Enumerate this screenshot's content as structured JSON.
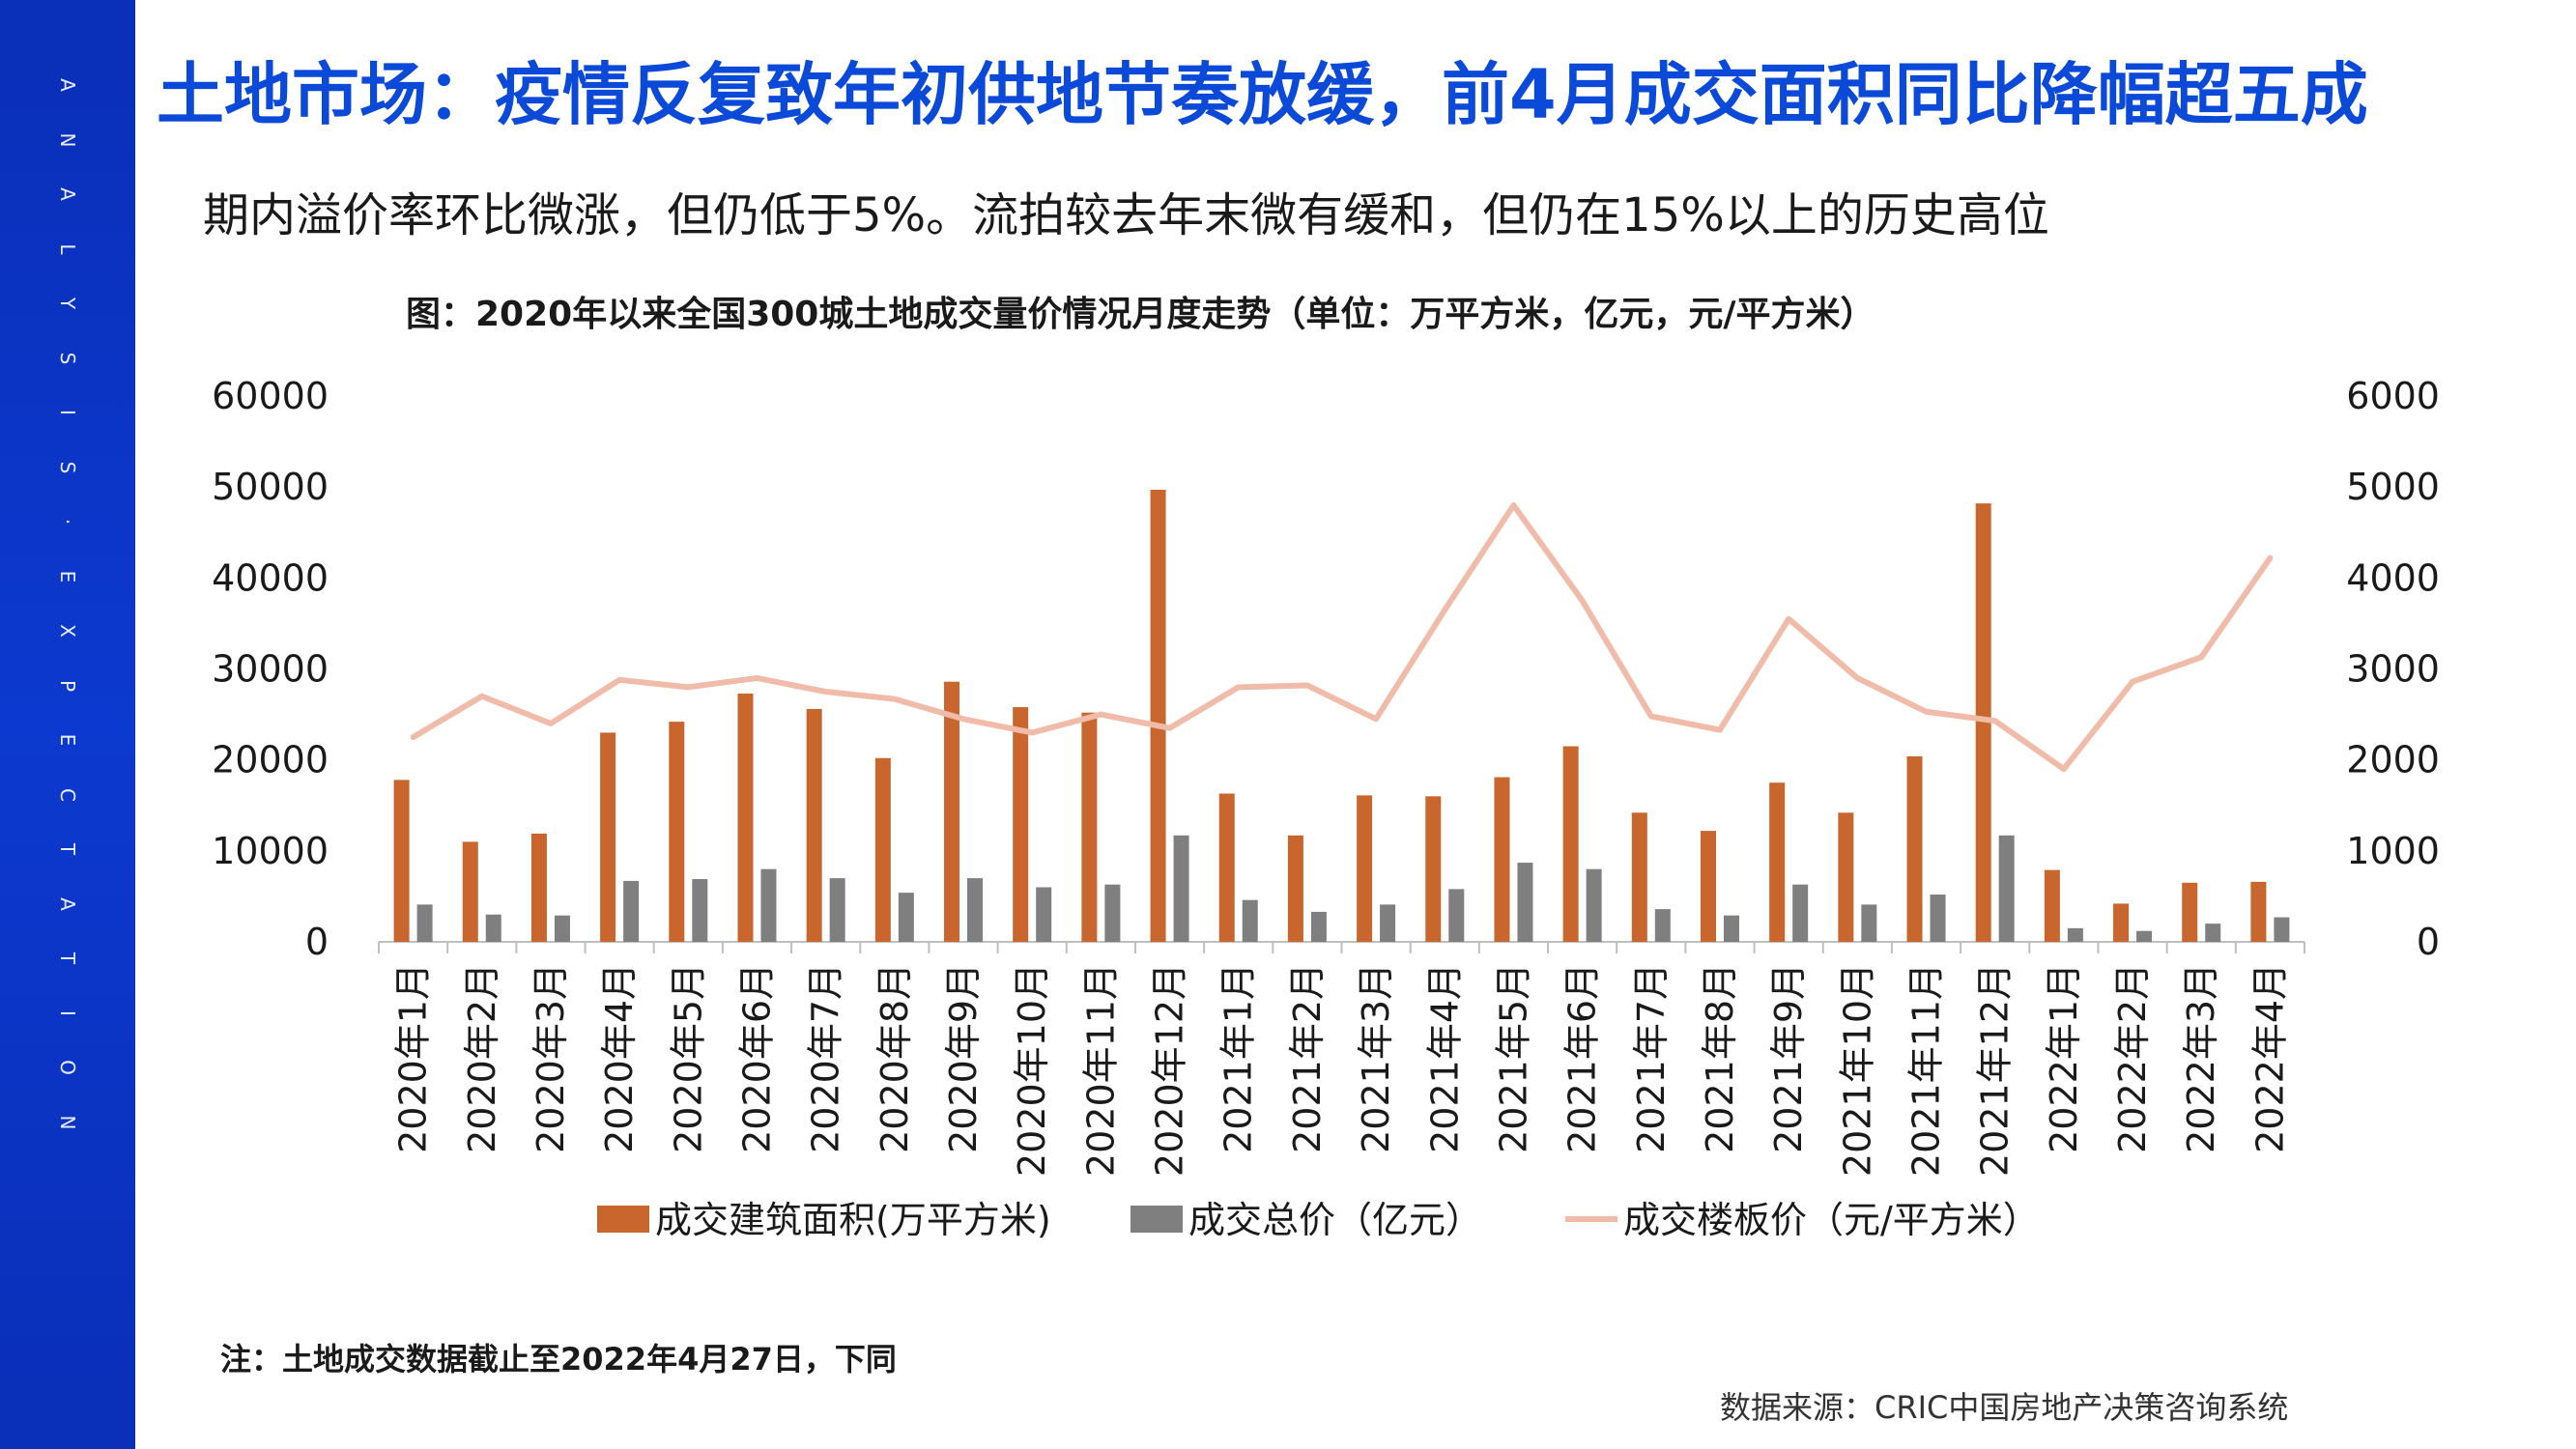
{
  "page": {
    "title": "土地市场：疫情反复致年初供地节奏放缓，前4月成交面积同比降幅超五成",
    "subtitle": "期内溢价率环比微涨，但仍低于5%。流拍较去年末微有缓和，但仍在15%以上的历史高位",
    "note": "注：土地成交数据截止至2022年4月27日，下同",
    "source": "数据来源：CRIC中国房地产决策咨询系统",
    "sidebar_letters": [
      "A",
      "N",
      "A",
      "L",
      "Y",
      "S",
      "I",
      "S",
      "·",
      "E",
      "X",
      "P",
      "E",
      "C",
      "T",
      "A",
      "T",
      "I",
      "O",
      "N"
    ]
  },
  "colors": {
    "sidebar": "#0a2fb8",
    "title": "#0b49d8",
    "area_bar": "#c8662e",
    "price_bar": "#7f7f7f",
    "unit_price_line": "#f0bba8"
  },
  "chart_data": {
    "type": "bar",
    "title": "图：2020年以来全国300城土地成交量价情况月度走势（单位：万平方米，亿元，元/平方米）",
    "categories": [
      "2020年1月",
      "2020年2月",
      "2020年3月",
      "2020年4月",
      "2020年5月",
      "2020年6月",
      "2020年7月",
      "2020年8月",
      "2020年9月",
      "2020年10月",
      "2020年11月",
      "2020年12月",
      "2021年1月",
      "2021年2月",
      "2021年3月",
      "2021年4月",
      "2021年5月",
      "2021年6月",
      "2021年7月",
      "2021年8月",
      "2021年9月",
      "2021年10月",
      "2021年11月",
      "2021年12月",
      "2022年1月",
      "2022年2月",
      "2022年3月",
      "2022年4月"
    ],
    "y_left": {
      "min": 0,
      "max": 60000,
      "ticks": [
        "0",
        "10000",
        "20000",
        "30000",
        "40000",
        "50000",
        "60000"
      ]
    },
    "y_right": {
      "min": 0,
      "max": 6000,
      "ticks": [
        "0",
        "1000",
        "2000",
        "3000",
        "4000",
        "5000",
        "6000"
      ]
    },
    "grid": false,
    "legend_position": "bottom",
    "series": [
      {
        "name": "成交建筑面积(万平方米)",
        "type": "bar",
        "axis": "left",
        "values": [
          17800,
          11000,
          11900,
          23000,
          24200,
          27300,
          25600,
          20200,
          28600,
          25800,
          25200,
          49700,
          16300,
          11700,
          16100,
          16000,
          18100,
          21500,
          14200,
          12200,
          17500,
          14200,
          20400,
          48200,
          7900,
          4200,
          6500,
          6600
        ]
      },
      {
        "name": "成交总价（亿元）",
        "type": "bar",
        "axis": "left",
        "values": [
          4100,
          3000,
          2900,
          6700,
          6900,
          8000,
          7000,
          5400,
          7000,
          6000,
          6300,
          11700,
          4600,
          3300,
          4100,
          5800,
          8700,
          8000,
          3600,
          2900,
          6300,
          4100,
          5200,
          11700,
          1500,
          1200,
          2000,
          2700
        ]
      },
      {
        "name": "成交楼板价（元/平方米）",
        "type": "line",
        "axis": "right",
        "values": [
          2250,
          2700,
          2400,
          2880,
          2800,
          2900,
          2750,
          2670,
          2450,
          2300,
          2500,
          2350,
          2800,
          2820,
          2450,
          3650,
          4800,
          3750,
          2480,
          2330,
          3550,
          2900,
          2530,
          2430,
          1900,
          2860,
          3130,
          4220
        ]
      }
    ]
  }
}
